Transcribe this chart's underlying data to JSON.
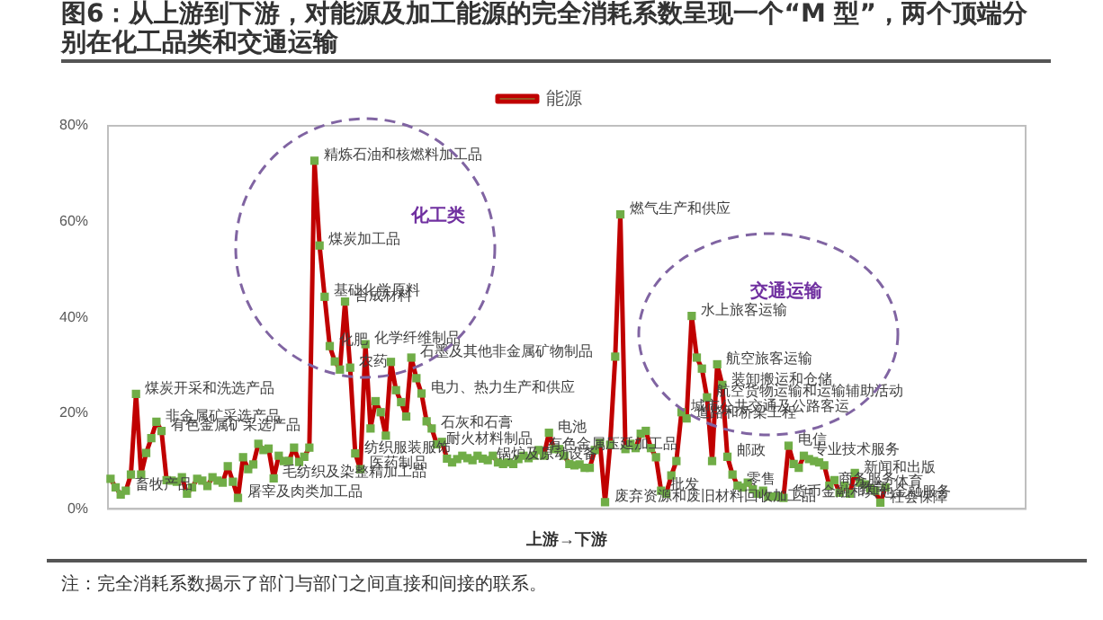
{
  "chart_data": {
    "type": "line",
    "title": "图6：从上游到下游，对能源及加工能源的完全消耗系数呈现一个“M 型”，两个顶端分别在化工品类和交通运输",
    "xlabel": "上游→下游",
    "annotations": [
      "化工类",
      "交通运输",
      "注：完全消耗系数揭示了部门与部门之间直接和间接的联系。"
    ],
    "categories": [
      null,
      null,
      null,
      null,
      null,
      null,
      null,
      null,
      null,
      null,
      null,
      null,
      null,
      null,
      null,
      null,
      null,
      null,
      null,
      null,
      null,
      null,
      null,
      null,
      null,
      null,
      null,
      null,
      null,
      null,
      null,
      null,
      null,
      null,
      null,
      null,
      null,
      null,
      null,
      null,
      null,
      null,
      null,
      null,
      null,
      null,
      null,
      null,
      null,
      null,
      null,
      null,
      null,
      null,
      null,
      null,
      null,
      null,
      null,
      null,
      null,
      null,
      null,
      null,
      null,
      null,
      null,
      null,
      null,
      null,
      null,
      null,
      null,
      null,
      null,
      null,
      null,
      null,
      null,
      null,
      null,
      null,
      null,
      null,
      null,
      null,
      null,
      null,
      null,
      null,
      null,
      null,
      null,
      null,
      null,
      null,
      null,
      null,
      null,
      null,
      null,
      null,
      null,
      null,
      null,
      null,
      null,
      null,
      null,
      null,
      null,
      null,
      null,
      null,
      null,
      null,
      null,
      null,
      null,
      null,
      null,
      null,
      null,
      null,
      null,
      null,
      null,
      null,
      null,
      null,
      null,
      null,
      null,
      null,
      null,
      null,
      null,
      null,
      null,
      null,
      null,
      null,
      null,
      null,
      null,
      null,
      null,
      null,
      null,
      null,
      null,
      null,
      null,
      null,
      null,
      null,
      null,
      null,
      null,
      null,
      null,
      null,
      null,
      null,
      null,
      null,
      null,
      null,
      null,
      null,
      null,
      null,
      null,
      null,
      null,
      null,
      null,
      null,
      null,
      null
    ],
    "series": [
      {
        "name": "能源",
        "color": "#c00000",
        "values": [
          6.3,
          4.5,
          3,
          3.8,
          7.2,
          24,
          7.2,
          11.7,
          14.8,
          18.2,
          16.3,
          6,
          5.9,
          5.7,
          6.6,
          3.2,
          4.5,
          6.3,
          5.9,
          4.8,
          6.6,
          5.9,
          5.5,
          8.9,
          5.7,
          2.3,
          10.8,
          8.3,
          9.3,
          13.6,
          12.3,
          12.6,
          6.4,
          11.1,
          10,
          10,
          12.8,
          9.8,
          10.9,
          12.8,
          72.7,
          55,
          44.3,
          34,
          30.8,
          29.1,
          43.3,
          29.5,
          11.6,
          8.3,
          34.4,
          16.8,
          22.5,
          20.2,
          15.3,
          30.7,
          24.8,
          22.3,
          19.3,
          31.6,
          27.3,
          24.1,
          18.3,
          16.8,
          13.5,
          14,
          10.5,
          9.7,
          10.4,
          11.1,
          10.6,
          10.2,
          11.1,
          10.5,
          10.2,
          11.1,
          9.7,
          9.4,
          9.7,
          9.4,
          10.4,
          11.1,
          10.6,
          11.1,
          12.3,
          11.1,
          15.9,
          12.5,
          12.5,
          11.1,
          9.4,
          9.1,
          9.3,
          8.6,
          8.6,
          12.3,
          13.8,
          1.4,
          13.4,
          31.8,
          61.5,
          12.5,
          13.6,
          12.7,
          15.7,
          16.3,
          12.7,
          10.8,
          3.8,
          3.2,
          7,
          10,
          20.2,
          18.9,
          40.3,
          31.6,
          29.3,
          23.3,
          10,
          30.2,
          25.9,
          10.9,
          7.2,
          4.9,
          4.5,
          5.5,
          4.1,
          3.2,
          3.8,
          2.6,
          2.6,
          2.6,
          2.3,
          13.2,
          9.4,
          8.6,
          11.1,
          10.4,
          10,
          9.7,
          9.1,
          4.9,
          6,
          3.4,
          4.9,
          3.2,
          7.5,
          5.5,
          5.1,
          4.3,
          3.8,
          1.3,
          4.5,
          null,
          null,
          null,
          null,
          null,
          null,
          null,
          null,
          null,
          null,
          null,
          null,
          null,
          null,
          null,
          null,
          null,
          null,
          null,
          null,
          null,
          null,
          null,
          null,
          null,
          null,
          null
        ],
        "value_labels": [
          null,
          null,
          null,
          "畜牧产品",
          null,
          "煤炭开采和洗选产品",
          null,
          null,
          null,
          "非金属矿采选产品",
          "有色金属矿采选产品",
          null,
          null,
          null,
          null,
          null,
          null,
          null,
          null,
          null,
          null,
          null,
          null,
          null,
          null,
          "屠宰及肉类加工品",
          null,
          null,
          null,
          null,
          null,
          null,
          "毛纺织及染整精加工品",
          null,
          null,
          null,
          null,
          null,
          null,
          null,
          "精炼石油和核燃料加工品",
          "煤炭加工品",
          "基础化学原料",
          "化肥",
          null,
          null,
          "合成材料",
          "农药",
          "纺织服装服饰",
          "医药制品",
          "化学纤维制品",
          null,
          null,
          null,
          null,
          null,
          null,
          null,
          null,
          "石墨及其他非金属矿物制品",
          null,
          "电力、热力生产和供应",
          null,
          "石灰和石膏",
          "耐火材料制品",
          null,
          null,
          null,
          null,
          null,
          null,
          null,
          null,
          null,
          "锅炉及原动设备",
          null,
          null,
          null,
          null,
          null,
          null,
          null,
          null,
          null,
          "有色金属压延加工品",
          null,
          "电池",
          null,
          null,
          null,
          null,
          null,
          null,
          null,
          null,
          null,
          null,
          "废弃资源和废旧材料回收加工品",
          null,
          null,
          "燃气生产和供应",
          null,
          null,
          null,
          null,
          null,
          null,
          null,
          "批发",
          null,
          null,
          null,
          "城市公共交通及公路客运",
          "道路和桥梁工程",
          "水上旅客运输",
          null,
          null,
          "航空货物运输和运输辅助活动",
          null,
          "航空旅客运输",
          "装卸搬运和仓储",
          "邮政",
          null,
          "零售",
          null,
          null,
          null,
          null,
          null,
          null,
          null,
          null,
          "货币金融和其他金融服务",
          "电信",
          null,
          null,
          "专业技术服务",
          null,
          null,
          null,
          null,
          "商务服务",
          null,
          null,
          null,
          "教育",
          "新闻和出版",
          null,
          null,
          null,
          null,
          "社会保障",
          "体育",
          null,
          null,
          null,
          null,
          null,
          null,
          null,
          null,
          null,
          null,
          null,
          null,
          null,
          null,
          null,
          null,
          null,
          null,
          null,
          null,
          null,
          null,
          null,
          null,
          null,
          null,
          null
        ]
      }
    ],
    "ylim": [
      0,
      80
    ],
    "yticks": [
      {
        "value": 0,
        "label": "0%"
      },
      {
        "value": 20,
        "label": "20%"
      },
      {
        "value": 40,
        "label": "40%"
      },
      {
        "value": 60,
        "label": "60%"
      },
      {
        "value": 80,
        "label": "80%"
      }
    ],
    "grid": false,
    "legend": "top",
    "marker": "square",
    "line_style": "solid"
  }
}
